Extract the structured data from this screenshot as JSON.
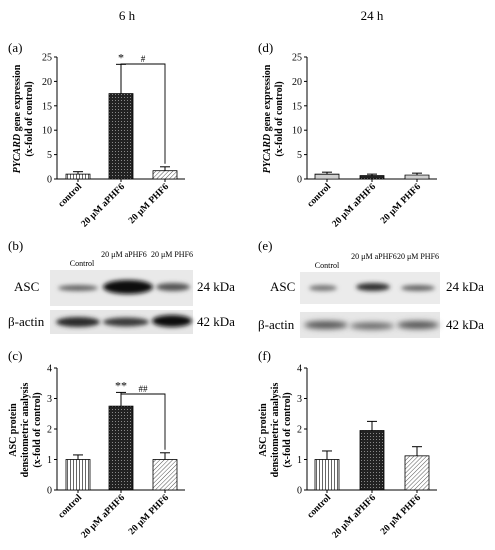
{
  "header": {
    "left": "6 h",
    "right": "24 h"
  },
  "panels": {
    "a": {
      "letter": "(a)",
      "ylabel_italic": "PYCARD",
      "ylabel_rest": " gene expression",
      "ylabel2": "(x-fold of control)"
    },
    "d": {
      "letter": "(d)",
      "ylabel_italic": "PYCARD",
      "ylabel_rest": " gene expression",
      "ylabel2": "(x-fold of control)"
    },
    "b": {
      "letter": "(b)",
      "lanes": [
        "Control",
        "20 μM aPHF6",
        "20 μM PHF6"
      ],
      "row1": "ASC",
      "row2": "β-actin",
      "kda1": "24 kDa",
      "kda2": "42 kDa"
    },
    "e": {
      "letter": "(e)",
      "lanes": [
        "Control",
        "20 μM aPHF6",
        "20 μM PHF6"
      ],
      "row1": "ASC",
      "row2": "β-actin",
      "kda1": "24 kDa",
      "kda2": "42 kDa"
    },
    "c": {
      "letter": "(c)",
      "ylabel1": "ASC protein",
      "ylabel2": "densitometric analysis",
      "ylabel3": "(x-fold of control)"
    },
    "f": {
      "letter": "(f)",
      "ylabel1": "ASC protein",
      "ylabel2": "densitometric analysis",
      "ylabel3": "(x-fold of control)"
    }
  },
  "chart_data": [
    {
      "panel": "a",
      "type": "bar",
      "categories": [
        "control",
        "20 μM aPHF6",
        "20 μM PHF6"
      ],
      "values": [
        1.0,
        17.5,
        1.7
      ],
      "errors": [
        0.5,
        6.0,
        0.8
      ],
      "ylim": [
        0,
        25
      ],
      "yticks": [
        0,
        5,
        10,
        15,
        20,
        25
      ],
      "annotations": [
        {
          "text": "*",
          "bar": 1
        }
      ],
      "bracket": {
        "from": 1,
        "to": 2,
        "text": "#"
      }
    },
    {
      "panel": "d",
      "type": "bar",
      "categories": [
        "control",
        "20 μM aPHF6",
        "20 μM PHF6"
      ],
      "values": [
        1.0,
        0.7,
        0.8
      ],
      "errors": [
        0.4,
        0.3,
        0.4
      ],
      "ylim": [
        0,
        25
      ],
      "yticks": [
        0,
        5,
        10,
        15,
        20,
        25
      ]
    },
    {
      "panel": "c",
      "type": "bar",
      "categories": [
        "control",
        "20 μM aPHF6",
        "20 μM PHF6"
      ],
      "values": [
        1.0,
        2.75,
        1.0
      ],
      "errors": [
        0.15,
        0.45,
        0.22
      ],
      "ylim": [
        0,
        4
      ],
      "yticks": [
        0,
        1,
        2,
        3,
        4
      ],
      "annotations": [
        {
          "text": "**",
          "bar": 1
        }
      ],
      "bracket": {
        "from": 1,
        "to": 2,
        "text": "##"
      }
    },
    {
      "panel": "f",
      "type": "bar",
      "categories": [
        "control",
        "20 μM aPHF6",
        "20 μM PHF6"
      ],
      "values": [
        1.0,
        1.95,
        1.12
      ],
      "errors": [
        0.28,
        0.3,
        0.3
      ],
      "ylim": [
        0,
        4
      ],
      "yticks": [
        0,
        1,
        2,
        3,
        4
      ]
    }
  ]
}
